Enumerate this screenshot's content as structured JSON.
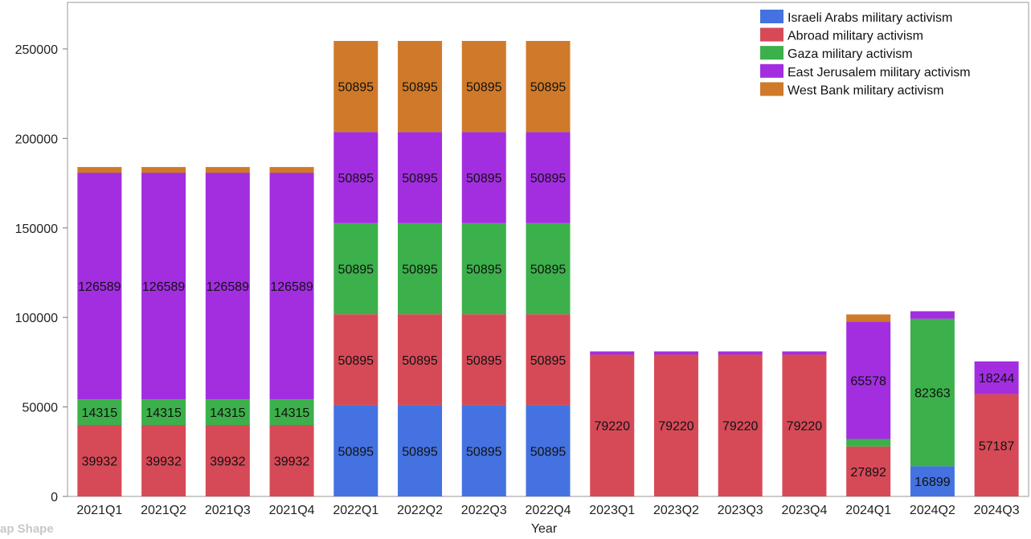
{
  "chart_data": {
    "type": "bar",
    "stacked": true,
    "title": "",
    "xlabel": "Year",
    "ylabel": "",
    "ylim": [
      0,
      276000
    ],
    "yticks": [
      0,
      50000,
      100000,
      150000,
      200000,
      250000
    ],
    "grid": false,
    "legend_position": "top-right",
    "categories": [
      "2021Q1",
      "2021Q2",
      "2021Q3",
      "2021Q4",
      "2022Q1",
      "2022Q2",
      "2022Q3",
      "2022Q4",
      "2023Q1",
      "2023Q2",
      "2023Q3",
      "2023Q4",
      "2024Q1",
      "2024Q2",
      "2024Q3"
    ],
    "series": [
      {
        "name": "Israeli Arabs military activism",
        "color": "#4472e0",
        "values": [
          0,
          0,
          0,
          0,
          50895,
          50895,
          50895,
          50895,
          0,
          0,
          0,
          0,
          0,
          16899,
          0
        ]
      },
      {
        "name": "Abroad military activism",
        "color": "#d64a57",
        "values": [
          39932,
          39932,
          39932,
          39932,
          50895,
          50895,
          50895,
          50895,
          79220,
          79220,
          79220,
          79220,
          27892,
          0,
          57187
        ]
      },
      {
        "name": "Gaza military activism",
        "color": "#3cb04a",
        "values": [
          14315,
          14315,
          14315,
          14315,
          50895,
          50895,
          50895,
          50895,
          0,
          0,
          0,
          0,
          4200,
          82363,
          0
        ]
      },
      {
        "name": "East Jerusalem military activism",
        "color": "#a22ee0",
        "values": [
          126589,
          126589,
          126589,
          126589,
          50895,
          50895,
          50895,
          50895,
          1800,
          1800,
          1800,
          1800,
          65578,
          4200,
          18244
        ]
      },
      {
        "name": "West Bank military activism",
        "color": "#cf7a2a",
        "values": [
          3200,
          3200,
          3200,
          3200,
          50895,
          50895,
          50895,
          50895,
          0,
          0,
          0,
          0,
          4000,
          0,
          0
        ]
      }
    ]
  },
  "corner_label": "ap Shape"
}
